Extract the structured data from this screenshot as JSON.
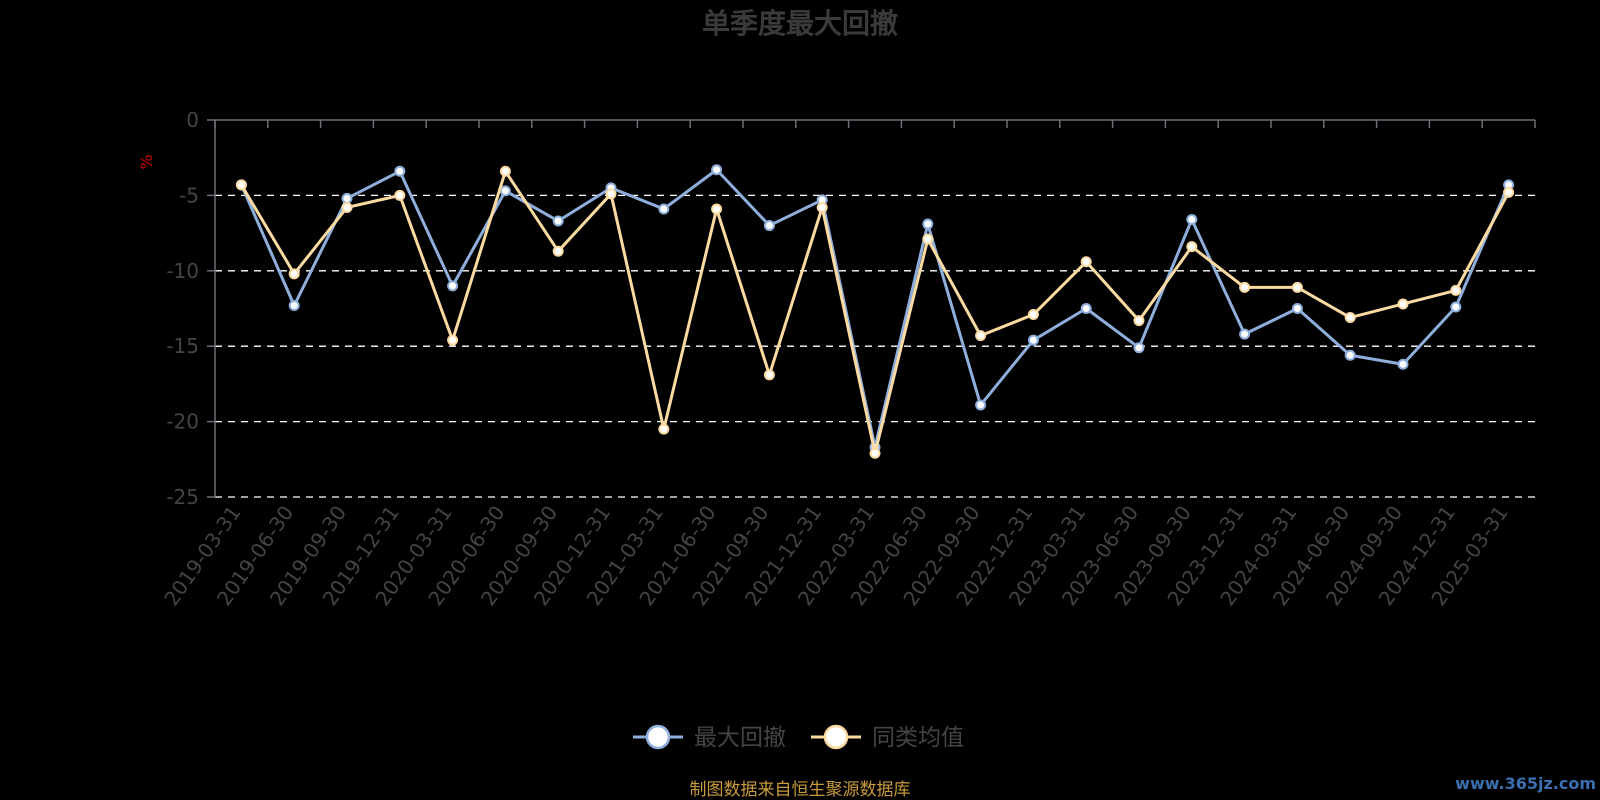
{
  "chart_data": {
    "type": "line",
    "title": "单季度最大回撤",
    "unit": "%",
    "ylim": [
      -25,
      0
    ],
    "yticks": [
      0,
      -5,
      -10,
      -15,
      -20,
      -25
    ],
    "grid": true,
    "legend_position": "bottom",
    "categories": [
      "2019-03-31",
      "2019-06-30",
      "2019-09-30",
      "2019-12-31",
      "2020-03-31",
      "2020-06-30",
      "2020-09-30",
      "2020-12-31",
      "2021-03-31",
      "2021-06-30",
      "2021-09-30",
      "2021-12-31",
      "2022-03-31",
      "2022-06-30",
      "2022-09-30",
      "2022-12-31",
      "2023-03-31",
      "2023-06-30",
      "2023-09-30",
      "2023-12-31",
      "2024-03-31",
      "2024-06-30",
      "2024-09-30",
      "2024-12-31",
      "2025-03-31"
    ],
    "series": [
      {
        "name": "最大回撤",
        "color": "#8eaedb",
        "values": [
          -4.3,
          -12.3,
          -5.2,
          -3.4,
          -11.0,
          -4.7,
          -6.7,
          -4.5,
          -5.9,
          -3.3,
          -7.0,
          -5.3,
          -21.7,
          -6.9,
          -18.9,
          -14.6,
          -12.5,
          -15.1,
          -6.6,
          -14.2,
          -12.5,
          -15.6,
          -16.2,
          -12.4,
          -4.3
        ]
      },
      {
        "name": "同类均值",
        "color": "#fcdba3",
        "values": [
          -4.3,
          -10.2,
          -5.8,
          -5.0,
          -14.6,
          -3.4,
          -8.7,
          -4.9,
          -20.5,
          -5.9,
          -16.9,
          -5.8,
          -22.1,
          -7.9,
          -14.3,
          -12.9,
          -9.4,
          -13.3,
          -8.4,
          -11.1,
          -11.1,
          -13.1,
          -12.2,
          -11.3,
          -4.8
        ]
      }
    ]
  },
  "footer": {
    "source": "制图数据来自恒生聚源数据库",
    "watermark": "www.365jz.com"
  }
}
